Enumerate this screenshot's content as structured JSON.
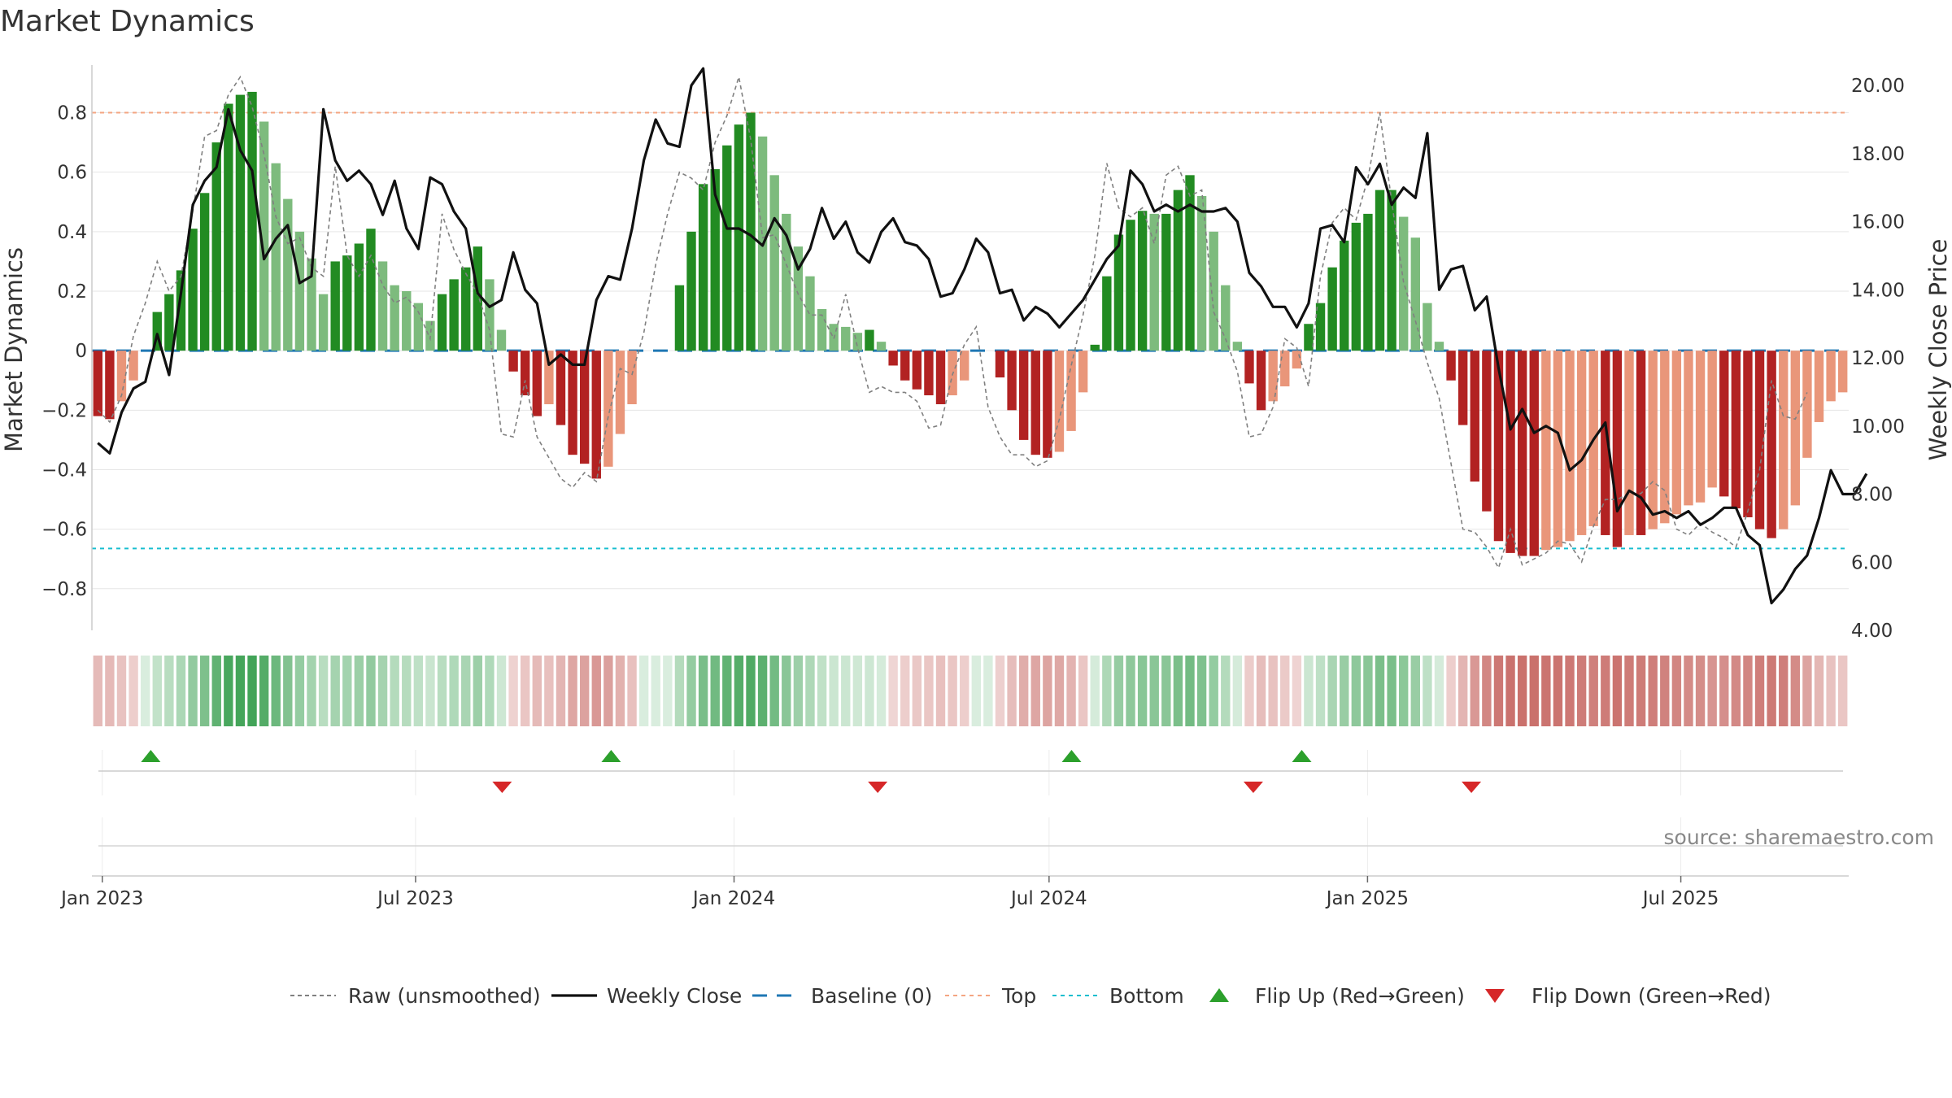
{
  "chart_data": {
    "type": "bar",
    "title": "Market Dynamics",
    "ylabel": "Market Dynamics",
    "y2label": "Weekly Close Price",
    "source": "source: sharemaestro.com",
    "ylim": [
      -0.94,
      0.96
    ],
    "y2lim": [
      4.0,
      20.6
    ],
    "yticks": [
      "0.8",
      "0.6",
      "0.4",
      "0.2",
      "0",
      "−0.2",
      "−0.4",
      "−0.6",
      "−0.8"
    ],
    "yticks_values": [
      0.8,
      0.6,
      0.4,
      0.2,
      0,
      -0.2,
      -0.4,
      -0.6,
      -0.8
    ],
    "y2ticks": [
      "20.00",
      "18.00",
      "16.00",
      "14.00",
      "12.00",
      "10.00",
      "8.00",
      "6.00",
      "4.00"
    ],
    "y2ticks_values": [
      20,
      18,
      16,
      14,
      12,
      10,
      8,
      6,
      4
    ],
    "xticks": [
      "Jan 2023",
      "Jul 2023",
      "Jan 2024",
      "Jul 2024",
      "Jan 2025",
      "Jul 2025"
    ],
    "xticks_values": [
      "2023-01-01",
      "2023-07-01",
      "2024-01-01",
      "2024-07-01",
      "2025-01-01",
      "2025-07-01"
    ],
    "x_start": "2022-12-26",
    "x_end": "2025-10-06",
    "reference_lines": {
      "baseline": 0,
      "top": 0.8,
      "bottom": -0.665
    },
    "colors": {
      "green_strong": "#228b22",
      "green_light": "#7dbb7d",
      "red_strong": "#b22222",
      "red_light": "#e9967a",
      "close": "#111111",
      "raw": "#808080",
      "baseline": "#1f77b4",
      "top": "#f4a582",
      "bottom": "#17becf",
      "flip_up": "#2ca02c",
      "flip_down": "#d62728"
    },
    "series": [
      {
        "name": "Market Dynamics",
        "kind": "bar",
        "values": [
          -0.22,
          -0.23,
          -0.17,
          -0.1,
          0.0,
          0.13,
          0.19,
          0.27,
          0.41,
          0.53,
          0.7,
          0.83,
          0.86,
          0.87,
          0.77,
          0.63,
          0.51,
          0.4,
          0.31,
          0.19,
          0.3,
          0.32,
          0.36,
          0.41,
          0.3,
          0.22,
          0.2,
          0.16,
          0.1,
          0.19,
          0.24,
          0.28,
          0.35,
          0.24,
          0.07,
          -0.07,
          -0.15,
          -0.22,
          -0.18,
          -0.25,
          -0.35,
          -0.38,
          -0.43,
          -0.39,
          -0.28,
          -0.18,
          0.0,
          0.0,
          0.0,
          0.22,
          0.4,
          0.56,
          0.61,
          0.69,
          0.76,
          0.8,
          0.72,
          0.59,
          0.46,
          0.35,
          0.25,
          0.14,
          0.09,
          0.08,
          0.06,
          0.07,
          0.03,
          -0.05,
          -0.1,
          -0.13,
          -0.15,
          -0.18,
          -0.15,
          -0.1,
          0.0,
          0.0,
          -0.09,
          -0.2,
          -0.3,
          -0.35,
          -0.36,
          -0.34,
          -0.27,
          -0.14,
          0.02,
          0.25,
          0.39,
          0.44,
          0.47,
          0.46,
          0.46,
          0.54,
          0.59,
          0.52,
          0.4,
          0.22,
          0.03,
          -0.11,
          -0.2,
          -0.17,
          -0.12,
          -0.06,
          0.09,
          0.16,
          0.28,
          0.37,
          0.43,
          0.46,
          0.54,
          0.54,
          0.45,
          0.38,
          0.16,
          0.03,
          -0.1,
          -0.25,
          -0.44,
          -0.54,
          -0.64,
          -0.68,
          -0.69,
          -0.69,
          -0.67,
          -0.66,
          -0.64,
          -0.62,
          -0.59,
          -0.62,
          -0.66,
          -0.62,
          -0.62,
          -0.6,
          -0.58,
          -0.55,
          -0.52,
          -0.51,
          -0.46,
          -0.49,
          -0.53,
          -0.56,
          -0.6,
          -0.63,
          -0.6,
          -0.52,
          -0.36,
          -0.24,
          -0.17,
          -0.14
        ]
      },
      {
        "name": "Raw (unsmoothed)",
        "kind": "line",
        "values": [
          -0.2,
          -0.24,
          -0.15,
          0.05,
          0.16,
          0.3,
          0.2,
          0.25,
          0.47,
          0.72,
          0.74,
          0.86,
          0.92,
          0.82,
          0.66,
          0.45,
          0.36,
          0.38,
          0.28,
          0.25,
          0.62,
          0.32,
          0.25,
          0.32,
          0.22,
          0.16,
          0.18,
          0.13,
          0.04,
          0.46,
          0.34,
          0.26,
          0.19,
          0.07,
          -0.28,
          -0.29,
          -0.1,
          -0.29,
          -0.36,
          -0.43,
          -0.46,
          -0.41,
          -0.44,
          -0.22,
          -0.06,
          -0.08,
          0.06,
          0.29,
          0.46,
          0.6,
          0.58,
          0.54,
          0.7,
          0.79,
          0.92,
          0.71,
          0.38,
          0.39,
          0.29,
          0.19,
          0.12,
          0.12,
          0.04,
          0.19,
          0.01,
          -0.14,
          -0.12,
          -0.14,
          -0.14,
          -0.17,
          -0.26,
          -0.25,
          -0.08,
          0.02,
          0.08,
          -0.19,
          -0.29,
          -0.35,
          -0.35,
          -0.39,
          -0.37,
          -0.23,
          -0.05,
          0.12,
          0.32,
          0.63,
          0.48,
          0.45,
          0.48,
          0.36,
          0.59,
          0.62,
          0.52,
          0.54,
          0.13,
          0.04,
          -0.07,
          -0.29,
          -0.28,
          -0.19,
          0.04,
          0.01,
          -0.12,
          0.25,
          0.43,
          0.48,
          0.44,
          0.58,
          0.8,
          0.5,
          0.23,
          0.1,
          -0.04,
          -0.16,
          -0.38,
          -0.6,
          -0.61,
          -0.66,
          -0.73,
          -0.6,
          -0.72,
          -0.7,
          -0.68,
          -0.64,
          -0.65,
          -0.71,
          -0.59,
          -0.5,
          -0.5,
          -0.48,
          -0.48,
          -0.44,
          -0.47,
          -0.6,
          -0.62,
          -0.58,
          -0.61,
          -0.63,
          -0.66,
          -0.54,
          -0.4,
          -0.1,
          -0.22,
          -0.23,
          -0.14
        ]
      },
      {
        "name": "Weekly Close",
        "kind": "line",
        "axis": "right",
        "values": [
          9.5,
          9.2,
          10.4,
          11.1,
          11.3,
          12.7,
          11.5,
          13.9,
          16.5,
          17.2,
          17.6,
          19.3,
          18.1,
          17.5,
          14.9,
          15.5,
          15.9,
          14.2,
          14.4,
          19.3,
          17.8,
          17.2,
          17.5,
          17.1,
          16.2,
          17.2,
          15.8,
          15.2,
          17.3,
          17.1,
          16.3,
          15.8,
          13.9,
          13.5,
          13.7,
          15.1,
          14.0,
          13.6,
          11.8,
          12.1,
          11.8,
          11.8,
          13.7,
          14.4,
          14.3,
          15.8,
          17.8,
          19.0,
          18.3,
          18.2,
          20.0,
          20.5,
          16.8,
          15.8,
          15.8,
          15.6,
          15.3,
          16.1,
          15.6,
          14.6,
          15.2,
          16.4,
          15.5,
          16.0,
          15.1,
          14.8,
          15.7,
          16.1,
          15.4,
          15.3,
          14.9,
          13.8,
          13.9,
          14.6,
          15.5,
          15.1,
          13.9,
          14.0,
          13.1,
          13.5,
          13.3,
          12.9,
          13.3,
          13.7,
          14.3,
          14.9,
          15.3,
          17.5,
          17.1,
          16.3,
          16.5,
          16.3,
          16.5,
          16.3,
          16.3,
          16.4,
          16.0,
          14.5,
          14.1,
          13.5,
          13.5,
          12.9,
          13.6,
          15.8,
          15.9,
          15.4,
          17.6,
          17.1,
          17.7,
          16.5,
          17.0,
          16.7,
          18.6,
          14.0,
          14.6,
          14.7,
          13.4,
          13.8,
          11.7,
          9.9,
          10.5,
          9.8,
          10.0,
          9.8,
          8.7,
          9.0,
          9.6,
          10.1,
          7.5,
          8.1,
          7.9,
          7.4,
          7.5,
          7.3,
          7.5,
          7.1,
          7.3,
          7.6,
          7.6,
          6.8,
          6.5,
          4.8,
          5.2,
          5.8,
          6.2,
          7.3,
          8.7,
          8.0,
          8.0,
          8.6
        ]
      }
    ],
    "flip_up_dates": [
      "2023-01-29",
      "2023-10-22",
      "2024-07-14",
      "2024-11-24"
    ],
    "flip_down_dates": [
      "2023-08-20",
      "2024-03-24",
      "2024-10-27",
      "2025-03-02"
    ]
  },
  "legend": [
    {
      "key": "raw",
      "label": "Raw (unsmoothed)"
    },
    {
      "key": "close",
      "label": "Weekly Close"
    },
    {
      "key": "baseline",
      "label": "Baseline (0)"
    },
    {
      "key": "top",
      "label": "Top"
    },
    {
      "key": "bottom",
      "label": "Bottom"
    },
    {
      "key": "flip_up",
      "label": "Flip Up (Red→Green)"
    },
    {
      "key": "flip_down",
      "label": "Flip Down (Green→Red)"
    }
  ]
}
